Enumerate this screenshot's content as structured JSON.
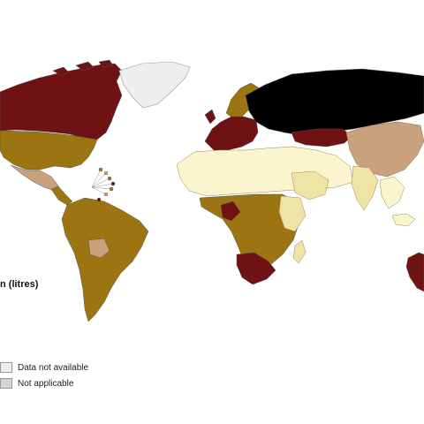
{
  "legend": {
    "title": "n (litres)",
    "items": [
      {
        "label": "Data not available",
        "color": "#eeeeee"
      },
      {
        "label": "Not applicable",
        "color": "#d4d4d4"
      }
    ]
  },
  "palette": {
    "black": "#000000",
    "maroon": "#6e1214",
    "olive_brown": "#9c7512",
    "tan": "#c9a27d",
    "pale_yellow": "#f0e3a6",
    "cream": "#fbf5cf",
    "not_available": "#eeeeee",
    "not_applicable": "#d4d4d4"
  },
  "regions": [
    {
      "name": "canada",
      "fill": "maroon"
    },
    {
      "name": "greenland",
      "fill": "not_available"
    },
    {
      "name": "usa",
      "fill": "olive_brown"
    },
    {
      "name": "mexico",
      "fill": "tan"
    },
    {
      "name": "central-america",
      "fill": "olive_brown"
    },
    {
      "name": "south-america",
      "fill": "olive_brown"
    },
    {
      "name": "bolivia",
      "fill": "tan"
    },
    {
      "name": "scandinavia",
      "fill": "olive_brown"
    },
    {
      "name": "western-europe",
      "fill": "maroon"
    },
    {
      "name": "russia",
      "fill": "black"
    },
    {
      "name": "kazakhstan",
      "fill": "maroon"
    },
    {
      "name": "north-africa-middle-east",
      "fill": "cream"
    },
    {
      "name": "arabia-iran",
      "fill": "pale_yellow"
    },
    {
      "name": "sub-saharan-africa",
      "fill": "olive_brown"
    },
    {
      "name": "nigeria",
      "fill": "maroon"
    },
    {
      "name": "east-africa",
      "fill": "pale_yellow"
    },
    {
      "name": "southern-africa",
      "fill": "maroon"
    },
    {
      "name": "china",
      "fill": "tan"
    },
    {
      "name": "india",
      "fill": "pale_yellow"
    },
    {
      "name": "southeast-asia",
      "fill": "cream"
    },
    {
      "name": "australia",
      "fill": "maroon"
    }
  ]
}
